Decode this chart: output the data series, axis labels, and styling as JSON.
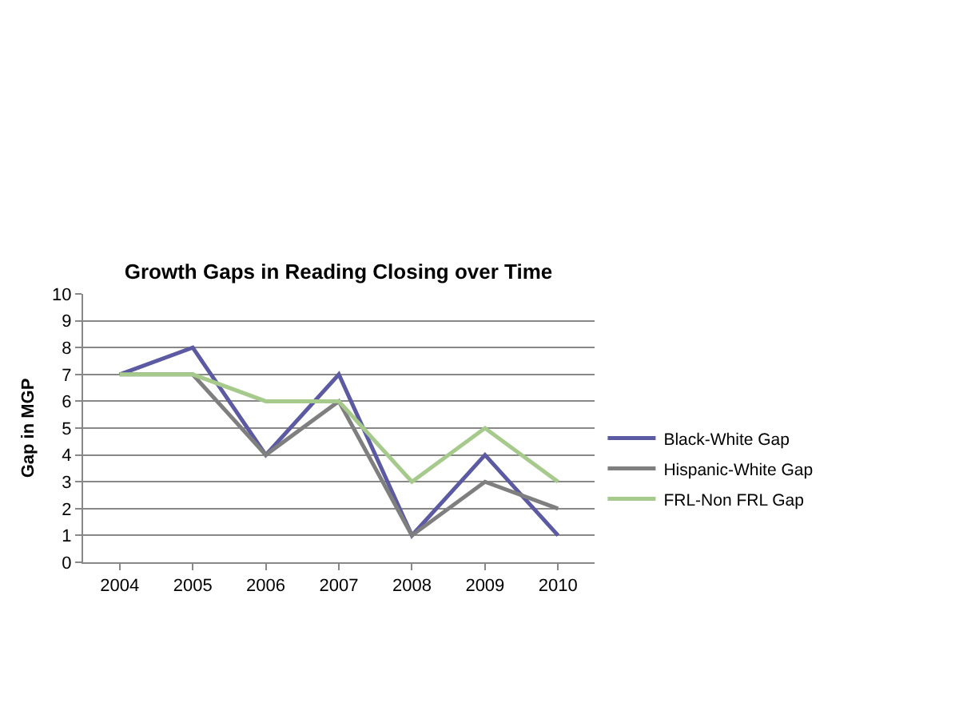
{
  "chart_data": {
    "type": "line",
    "title": "Growth Gaps in Reading Closing over Time",
    "ylabel": "Gap in MGP",
    "categories": [
      "2004",
      "2005",
      "2006",
      "2007",
      "2008",
      "2009",
      "2010"
    ],
    "series": [
      {
        "name": "Black-White Gap",
        "color": "#5b5aa2",
        "values": [
          7,
          8,
          4,
          7,
          1,
          4,
          1
        ]
      },
      {
        "name": "Hispanic-White Gap",
        "color": "#7f7f7f",
        "values": [
          7,
          7,
          4,
          6,
          1,
          3,
          2
        ]
      },
      {
        "name": "FRL-Non FRL Gap",
        "color": "#a6c98c",
        "values": [
          7,
          7,
          6,
          6,
          3,
          5,
          3
        ]
      }
    ],
    "ylim": [
      0,
      10
    ],
    "yticks": [
      0,
      1,
      2,
      3,
      4,
      5,
      6,
      7,
      8,
      9,
      10
    ],
    "grid": "y",
    "legend": "right",
    "marker": "none",
    "line_style": "solid"
  }
}
